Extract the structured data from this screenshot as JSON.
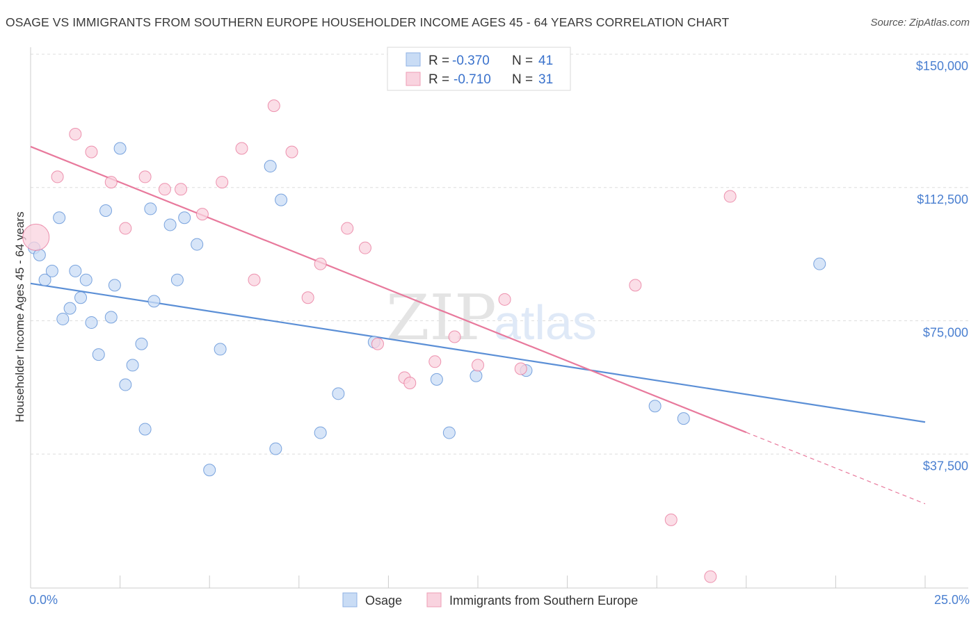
{
  "header": {
    "title": "OSAGE VS IMMIGRANTS FROM SOUTHERN EUROPE HOUSEHOLDER INCOME AGES 45 - 64 YEARS CORRELATION CHART",
    "source": "Source: ZipAtlas.com"
  },
  "watermark": {
    "zip": "ZIP",
    "atlas": "atlas"
  },
  "legend": {
    "rows": [
      {
        "r_label": "R =",
        "r_value": "-0.370",
        "n_label": "N =",
        "n_value": "41",
        "color": "#a9c8f0"
      },
      {
        "r_label": "R =",
        "r_value": "-0.710",
        "n_label": "N =",
        "n_value": "31",
        "color": "#f7b9cb"
      }
    ]
  },
  "bottom_legend": {
    "items": [
      "Osage",
      "Immigrants from Southern Europe"
    ]
  },
  "chart_data": {
    "type": "scatter",
    "xlabel": "",
    "ylabel": "Householder Income Ages 45 - 64 years",
    "xlim": [
      0,
      25
    ],
    "ylim": [
      0,
      150000
    ],
    "x_tick_labels": [
      "0.0%",
      "25.0%"
    ],
    "y_tick_labels": [
      "$37,500",
      "$75,000",
      "$112,500",
      "$150,000"
    ],
    "y_ticks": [
      37500,
      75000,
      112500,
      150000
    ],
    "grid": true,
    "legend_position": "top-center",
    "series": [
      {
        "name": "Osage",
        "color": "#5b8fd6",
        "fill": "#c9dcf5",
        "trend": {
          "x": [
            0,
            25
          ],
          "y": [
            85500,
            46500
          ]
        },
        "points": [
          [
            0.1,
            95500
          ],
          [
            0.25,
            93500
          ],
          [
            0.4,
            86500
          ],
          [
            0.6,
            89000
          ],
          [
            0.8,
            104000
          ],
          [
            0.9,
            75500
          ],
          [
            1.1,
            78500
          ],
          [
            1.25,
            89000
          ],
          [
            1.4,
            81500
          ],
          [
            1.55,
            86500
          ],
          [
            1.7,
            74500
          ],
          [
            1.9,
            65500
          ],
          [
            2.1,
            106000
          ],
          [
            2.25,
            76000
          ],
          [
            2.35,
            85000
          ],
          [
            2.5,
            123500
          ],
          [
            2.65,
            57000
          ],
          [
            2.85,
            62500
          ],
          [
            3.1,
            68500
          ],
          [
            3.2,
            44500
          ],
          [
            3.35,
            106500
          ],
          [
            3.45,
            80500
          ],
          [
            3.9,
            102000
          ],
          [
            4.1,
            86500
          ],
          [
            4.3,
            104000
          ],
          [
            4.65,
            96500
          ],
          [
            5.0,
            33000
          ],
          [
            5.3,
            67000
          ],
          [
            6.7,
            118500
          ],
          [
            6.85,
            39000
          ],
          [
            7.0,
            109000
          ],
          [
            8.1,
            43500
          ],
          [
            8.6,
            54500
          ],
          [
            9.6,
            69000
          ],
          [
            11.35,
            58500
          ],
          [
            11.7,
            43500
          ],
          [
            12.45,
            59500
          ],
          [
            13.85,
            61000
          ],
          [
            17.45,
            51000
          ],
          [
            18.25,
            47500
          ],
          [
            22.05,
            91000
          ]
        ]
      },
      {
        "name": "Immigrants from Southern Europe",
        "color": "#e8799c",
        "fill": "#f9d3df",
        "trend": {
          "x": [
            0,
            25
          ],
          "y": [
            124000,
            23500
          ],
          "solid_until_x": 20.0
        },
        "points": [
          [
            0.15,
            98500
          ],
          [
            0.75,
            115500
          ],
          [
            1.25,
            127500
          ],
          [
            1.7,
            122500
          ],
          [
            2.25,
            114000
          ],
          [
            2.65,
            101000
          ],
          [
            3.2,
            115500
          ],
          [
            3.75,
            112000
          ],
          [
            4.2,
            112000
          ],
          [
            4.8,
            105000
          ],
          [
            5.35,
            114000
          ],
          [
            5.9,
            123500
          ],
          [
            6.25,
            86500
          ],
          [
            6.8,
            135500
          ],
          [
            7.3,
            122500
          ],
          [
            7.75,
            81500
          ],
          [
            8.1,
            91000
          ],
          [
            8.85,
            101000
          ],
          [
            9.35,
            95500
          ],
          [
            9.7,
            68500
          ],
          [
            10.45,
            59000
          ],
          [
            10.6,
            57500
          ],
          [
            11.3,
            63500
          ],
          [
            11.85,
            70500
          ],
          [
            12.5,
            62500
          ],
          [
            13.25,
            81000
          ],
          [
            13.7,
            61500
          ],
          [
            16.9,
            85000
          ],
          [
            17.9,
            19000
          ],
          [
            19.0,
            3000
          ],
          [
            19.55,
            110000
          ]
        ]
      }
    ]
  }
}
